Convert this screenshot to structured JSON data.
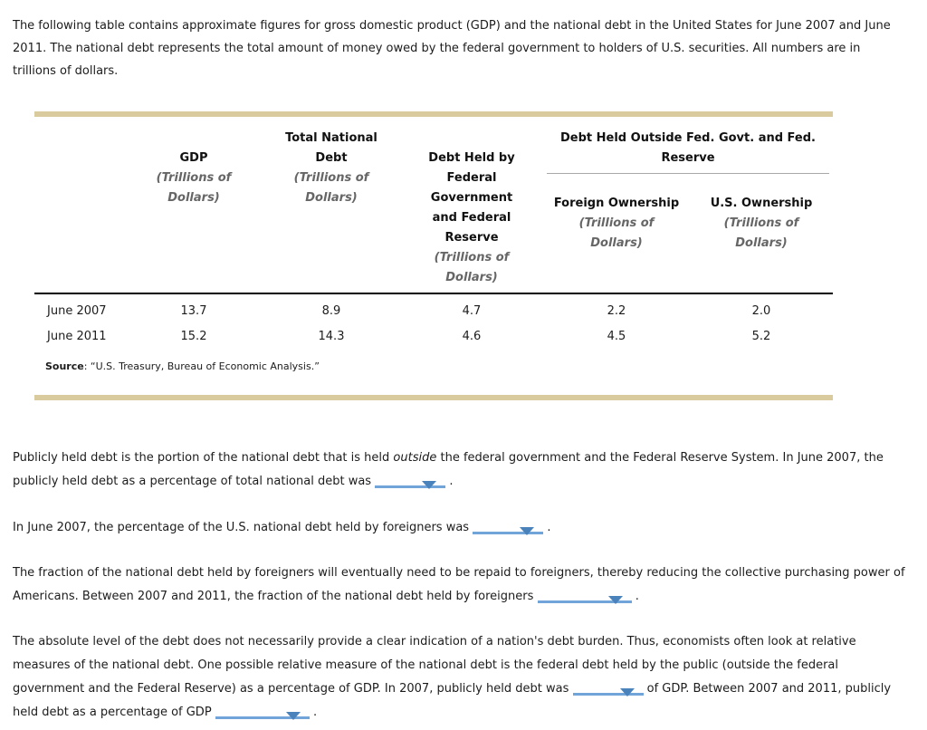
{
  "colors": {
    "table_bar": "#d9cb9e",
    "dropdown_line": "#71a4d9",
    "dropdown_arrow": "#4a82bc",
    "unit_text": "#666666",
    "group_rule": "#a9a9a9",
    "text": "#1c1c1c"
  },
  "intro": "The following table contains approximate figures for gross domestic product (GDP) and the national debt in the United States for June 2007 and June 2011. The national debt represents the total amount of money owed by the federal government to holders of U.S. securities. All numbers are in trillions of dollars.",
  "table": {
    "unit_label": "(Trillions of Dollars)",
    "columns": {
      "gdp": "GDP",
      "total_national_debt": "Total National Debt",
      "debt_held_by_fed": "Debt Held by Federal Government and Federal Reserve",
      "group": "Debt Held Outside Fed. Govt. and Fed. Reserve",
      "foreign": "Foreign Ownership",
      "us": "U.S. Ownership"
    },
    "rows": [
      {
        "label": "June 2007",
        "gdp": "13.7",
        "tnd": "8.9",
        "dhb": "4.7",
        "foreign": "2.2",
        "us": "2.0"
      },
      {
        "label": "June 2011",
        "gdp": "15.2",
        "tnd": "14.3",
        "dhb": "4.6",
        "foreign": "4.5",
        "us": "5.2"
      }
    ],
    "source_label": "Source",
    "source_text": ": “U.S. Treasury, Bureau of Economic Analysis.”"
  },
  "questions": {
    "q1": {
      "part1": "Publicly held debt is the portion of the national debt that is held",
      "italic": "outside",
      "part2": "the federal government and the Federal Reserve System. In June 2007, the publicly held debt as a percentage of total national debt was",
      "suffix": "."
    },
    "q2": {
      "part1": "In June 2007, the percentage of the U.S. national debt held by foreigners was",
      "suffix": "."
    },
    "q3": {
      "part1": "The fraction of the national debt held by foreigners will eventually need to be repaid to foreigners, thereby reducing the collective purchasing power of Americans. Between 2007 and 2011, the fraction of the national debt held by foreigners",
      "suffix": "."
    },
    "q4": {
      "part1": "The absolute level of the debt does not necessarily provide a clear indication of a nation's debt burden. Thus, economists often look at relative measures of the national debt. One possible relative measure of the national debt is the federal debt held by the public (outside the federal government and the Federal Reserve) as a percentage of GDP. In 2007, publicly held debt was",
      "part2": "of GDP. Between 2007 and 2011, publicly held debt as a percentage of GDP",
      "suffix": "."
    }
  }
}
